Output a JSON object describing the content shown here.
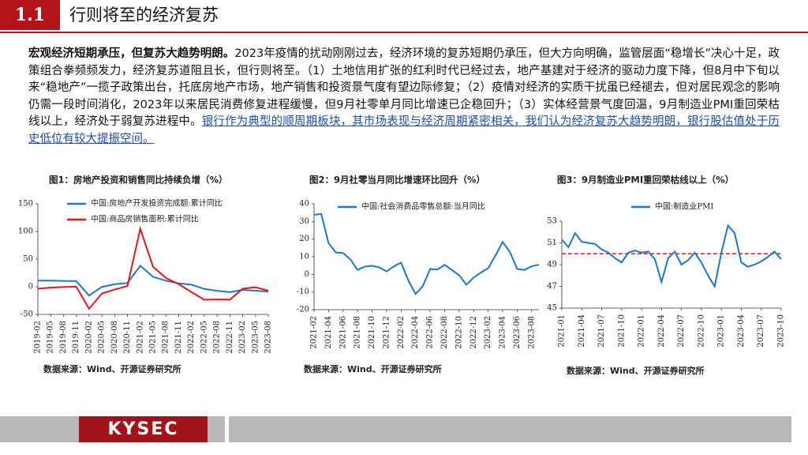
{
  "header": {
    "number": "1.1",
    "title": "行则将至的经济复苏"
  },
  "body": {
    "bold": "宏观经济短期承压，但复苏大趋势明朗。",
    "text": "2023年疫情的扰动刚刚过去，经济环境的复苏短期仍承压，但大方向明确，监管层面“稳增长”决心十足，政策组合拳频频发力，经济复苏道阻且长，但行则将至。（1）土地信用扩张的红利时代已经过去，地产基建对于经济的驱动力度下降，但8月中下旬以来“稳地产”一揽子政策出台，托底房地产市场，地产销售和投资景气度有望边际修复；（2）疫情对经济的实质干扰虽已经褪去，但对居民观念的影响仍需一段时间消化，2023年以来居民消费修复进程缓慢，但9月社零单月同比增速已企稳回升；（3）实体经营景气度回温，9月制造业PMI重回荣枯线以上，经济处于弱复苏进程中。",
    "link": "银行作为典型的顺周期板块，其市场表现与经济周期紧密相关，我们认为经济复苏大趋势明朗，银行股估值处于历史低位有较大提振空间。"
  },
  "footer": {
    "logo": "KYSEC"
  },
  "chart_data": [
    {
      "type": "line",
      "title": "图1：房地产投资和销售同比持续负增（%）",
      "source": "数据来源：Wind、开源证券研究所",
      "categories": [
        "2019-02",
        "2019-05",
        "2019-08",
        "2019-11",
        "2020-02",
        "2020-05",
        "2020-08",
        "2020-11",
        "2021-02",
        "2021-05",
        "2021-08",
        "2021-11",
        "2022-02",
        "2022-05",
        "2022-08",
        "2022-11",
        "2023-02",
        "2023-05",
        "2023-08"
      ],
      "series": [
        {
          "name": "中国:房地产开发投资完成额:累计同比",
          "color": "#1f77c4",
          "values": [
            11,
            11,
            10.5,
            10.2,
            -16,
            -0.3,
            4.6,
            6.8,
            38,
            18,
            11,
            6,
            3.7,
            -4,
            -7.4,
            -9.8,
            -5.7,
            -7.2,
            -8.8
          ]
        },
        {
          "name": "中国:商品房销售面积:累计同比",
          "color": "#e8151b",
          "values": [
            -3.6,
            -1.6,
            -0.6,
            0.2,
            -39.9,
            -12.3,
            -5.1,
            1.3,
            104.9,
            36,
            15.9,
            4.8,
            -9.6,
            -23.6,
            -23,
            -23.3,
            -3.6,
            -0.9,
            -7.1
          ]
        }
      ],
      "ylim": [
        -50,
        150
      ],
      "yticks": [
        -50,
        0,
        50,
        100,
        150
      ]
    },
    {
      "type": "line",
      "title": "图2：9月社零当月同比增速环比回升（%）",
      "source": "数据来源：Wind、开源证券研究所",
      "categories": [
        "2021-02",
        null,
        "2021-04",
        null,
        "2021-06",
        null,
        "2021-08",
        null,
        "2021-10",
        null,
        "2021-12",
        null,
        "2022-02",
        null,
        "2022-04",
        null,
        "2022-06",
        null,
        "2022-08",
        null,
        "2022-10",
        null,
        "2022-12",
        null,
        "2023-02",
        null,
        "2023-04",
        null,
        "2023-06",
        null,
        "2023-08",
        null
      ],
      "series": [
        {
          "name": "中国:社会消费品零售总额:当月同比",
          "color": "#1f77c4",
          "values": [
            33.8,
            34.2,
            17.7,
            12.4,
            12.1,
            8.5,
            2.5,
            4.4,
            4.9,
            3.9,
            1.7,
            4.5,
            6.7,
            -3.5,
            -11.1,
            -6.7,
            3.1,
            2.7,
            5.4,
            2.5,
            -0.5,
            -5.9,
            -1.8,
            1,
            3.5,
            10.6,
            18.4,
            12.7,
            3.1,
            2.5,
            4.6,
            5.5
          ]
        }
      ],
      "ylim": [
        -20,
        40
      ],
      "yticks": [
        -20,
        -10,
        0,
        10,
        20,
        30,
        40
      ]
    },
    {
      "type": "line",
      "title": "图3：9月制造业PMI重回荣枯线以上（%）",
      "source": "数据来源：Wind、开源证券研究所",
      "categories": [
        "2021-01",
        null,
        null,
        "2021-04",
        null,
        null,
        "2021-07",
        null,
        null,
        "2021-10",
        null,
        null,
        "2022-01",
        null,
        null,
        "2022-04",
        null,
        null,
        "2022-07",
        null,
        null,
        "2022-10",
        null,
        null,
        "2023-01",
        null,
        null,
        "2023-04",
        null,
        null,
        "2023-07",
        null,
        null,
        "2023-10"
      ],
      "series": [
        {
          "name": "中国:制造业PMI",
          "color": "#1f77c4",
          "values": [
            51.3,
            50.6,
            51.9,
            51.1,
            51.0,
            50.9,
            50.4,
            50.1,
            49.6,
            49.2,
            50.1,
            50.3,
            50.1,
            50.2,
            49.5,
            47.4,
            49.6,
            50.2,
            49.0,
            49.4,
            50.1,
            49.2,
            48.0,
            47.0,
            50.1,
            52.6,
            51.9,
            49.2,
            48.8,
            49.0,
            49.3,
            49.7,
            50.2,
            49.5
          ]
        }
      ],
      "ylim": [
        45,
        53
      ],
      "yticks": [
        45,
        47,
        49,
        51,
        53
      ],
      "hline": {
        "value": 50,
        "color": "#e8151b"
      }
    }
  ]
}
